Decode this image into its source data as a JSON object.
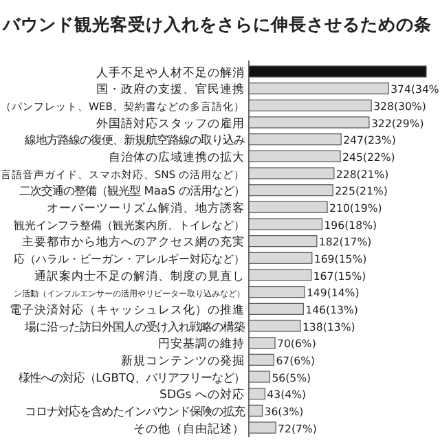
{
  "chart_data": {
    "type": "bar",
    "orientation": "horizontal",
    "title": "バウンド観光客受け入れをさらに伸長させるための条",
    "categories": [
      "人手不足や人材不足の解消",
      "国・政府の支援、官民連携",
      "（パンフレット、WEB、契約書などの多言語化）",
      "外国語対応スタッフの雇用",
      "線地方路線の復便、新規航空路線の取り込み",
      "自治体の広域連携の拡大",
      "言語音声ガイド、スマホ対応、SNS の活用など）",
      "二次交通の整備（観光型 MaaS の活用など）",
      "オーバーツーリズム解消、地方誘客",
      "観光インフラ整備（観光案内所、トイレなど）",
      "主要都市から地方へのアクセス網の充実",
      "応（ハラル・ビーガン・アレルギー対応など）",
      "通訳案内士不足の解消、制度の見直し",
      "ン活動（インフルエンサーの活用やリピーター取り込みなど）",
      "電子決済対応（キャッシュレス化）の推進",
      "場に沿った訪日外国人の受け入れ戦略の構築",
      "円安基調の維持",
      "新規コンテンツの発掘",
      "様性への対応（LGBTQ、バリアフリーなど）",
      "SDGs への対応",
      "コロナ対応を含めたインバウンド保険の拡充",
      "その他（自由記述）"
    ],
    "values": [
      475,
      374,
      328,
      322,
      247,
      245,
      228,
      225,
      210,
      196,
      182,
      169,
      167,
      149,
      146,
      138,
      70,
      67,
      56,
      43,
      36,
      72
    ],
    "value_labels": [
      null,
      "374(34%)",
      "328(30%)",
      "322(29%)",
      "247(23%)",
      "245(22%)",
      "228(21%)",
      "225(21%)",
      "210(19%)",
      "196(18%)",
      "182(17%)",
      "169(15%)",
      "167(15%)",
      "149(14%)",
      "146(13%)",
      "138(13%)",
      "70(6%)",
      "67(6%)",
      "56(5%)",
      "43(4%)",
      "36(3%)",
      "72(7%)"
    ],
    "colors": [
      "#111111",
      "#d9d9d9",
      "#d9d9d9",
      "#d9d9d9",
      "#d9d9d9",
      "#d9d9d9",
      "#d9d9d9",
      "#d9d9d9",
      "#d9d9d9",
      "#d9d9d9",
      "#d9d9d9",
      "#d9d9d9",
      "#d9d9d9",
      "#d9d9d9",
      "#d9d9d9",
      "#d9d9d9",
      "#d9d9d9",
      "#d9d9d9",
      "#d9d9d9",
      "#d9d9d9",
      "#d9d9d9",
      "#d9d9d9"
    ]
  }
}
